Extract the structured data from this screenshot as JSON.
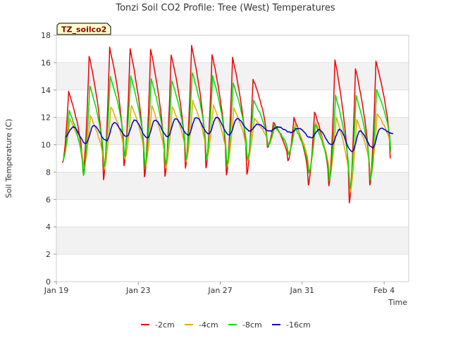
{
  "chart_data": {
    "type": "line",
    "title": "Tonzi Soil CO2 Profile: Tree (West) Temperatures",
    "xlabel": "Time",
    "ylabel": "Soil Temperature (C)",
    "ylim": [
      0,
      18
    ],
    "yticks": [
      0,
      2,
      4,
      6,
      8,
      10,
      12,
      14,
      16,
      18
    ],
    "xlim": [
      0,
      17.2
    ],
    "xticks": [
      {
        "value": 0,
        "label": "Jan 19"
      },
      {
        "value": 4,
        "label": "Jan 23"
      },
      {
        "value": 8,
        "label": "Jan 27"
      },
      {
        "value": 12,
        "label": "Jan 31"
      },
      {
        "value": 16,
        "label": "Feb 4"
      }
    ],
    "x_unit": "days since Jan 19",
    "tag": "TZ_soilco2",
    "grid": "horizontal bands",
    "legend_position": "bottom",
    "series": [
      {
        "name": "-2cm",
        "color": "#ee0000",
        "minima": [
          8.7,
          8.0,
          7.5,
          8.5,
          7.7,
          7.7,
          8.3,
          8.3,
          7.8,
          7.8,
          9.8,
          8.8,
          7.1,
          7.0,
          5.8,
          7.0,
          9.0
        ],
        "maxima": [
          13.9,
          16.5,
          17.1,
          17.0,
          17.0,
          16.6,
          17.2,
          16.6,
          16.4,
          14.8,
          11.6,
          12.0,
          12.4,
          16.2,
          15.6,
          16.1
        ]
      },
      {
        "name": "-4cm",
        "color": "#e6a800",
        "minima": [
          9.0,
          8.3,
          8.2,
          8.9,
          8.4,
          8.3,
          8.8,
          8.9,
          8.4,
          8.8,
          10.0,
          9.3,
          8.0,
          7.6,
          6.5,
          7.6,
          9.5
        ],
        "maxima": [
          11.9,
          12.1,
          12.8,
          12.9,
          12.8,
          12.8,
          13.2,
          12.9,
          12.7,
          11.9,
          11.3,
          11.5,
          11.6,
          12.0,
          11.8,
          12.3
        ]
      },
      {
        "name": "-8cm",
        "color": "#00dd00",
        "minima": [
          8.8,
          7.7,
          8.4,
          9.2,
          8.4,
          8.5,
          8.9,
          9.0,
          8.5,
          8.9,
          9.9,
          9.3,
          7.9,
          7.4,
          6.8,
          7.4,
          9.6
        ],
        "maxima": [
          12.5,
          14.3,
          15.0,
          15.0,
          14.8,
          14.7,
          15.3,
          15.0,
          14.5,
          13.2,
          11.4,
          11.3,
          11.5,
          13.6,
          13.6,
          14.0
        ]
      },
      {
        "name": "-16cm",
        "color": "#0000cc",
        "minima": [
          10.6,
          10.1,
          10.3,
          10.6,
          10.5,
          10.6,
          10.7,
          10.8,
          10.7,
          11.0,
          11.0,
          10.9,
          10.5,
          10.0,
          9.5,
          9.8,
          10.8
        ],
        "maxima": [
          11.3,
          11.4,
          11.6,
          11.8,
          11.8,
          11.9,
          12.0,
          12.0,
          11.9,
          11.5,
          11.3,
          11.2,
          11.1,
          11.1,
          11.0,
          11.2
        ]
      }
    ]
  }
}
